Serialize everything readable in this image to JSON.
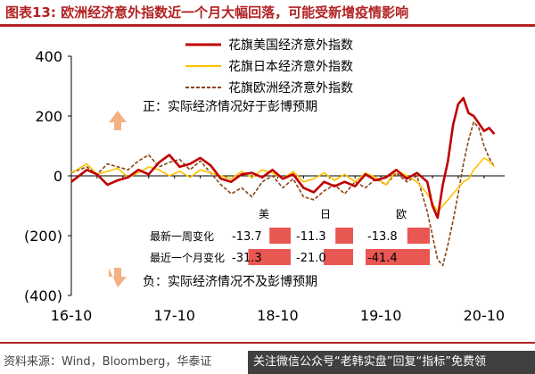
{
  "title": "图表13:  欧洲经济意外指数近一个月大幅回落，可能受新增疫情影响",
  "source": "资料来源：Wind，Bloomberg，华泰证",
  "watermark_text": "关注微信公众号“老韩实盘”回复“指标”免费领",
  "colors": {
    "us": "#c00000",
    "japan": "#ffc000",
    "euro": "#8b4513",
    "arrow": "#f4b183",
    "box": "#e53935"
  },
  "annotations": {
    "up": "正：实际经济情况好于彭博预期",
    "down": "负：实际经济情况不及彭博预期"
  },
  "change_table": {
    "columns": [
      "美",
      "日",
      "欧"
    ],
    "rows": [
      {
        "label": "最新一周变化",
        "values": [
          "-13.7",
          "-11.3",
          "-13.8"
        ],
        "levels": [
          0.35,
          0.3,
          0.35
        ]
      },
      {
        "label": "最近一个月变化",
        "values": [
          "-31.3",
          "-21.0",
          "-41.4"
        ],
        "levels": [
          0.7,
          0.5,
          1.0
        ]
      }
    ]
  },
  "chart_data": {
    "type": "line",
    "title": "",
    "xlabel": "",
    "ylabel": "",
    "ylim": [
      -400,
      400
    ],
    "y_ticks": [
      "400",
      "200",
      "0",
      "(200)",
      "(400)"
    ],
    "x_ticks": [
      "16-10",
      "17-10",
      "18-10",
      "19-10",
      "20-10"
    ],
    "legend": [
      "花旗美国经济意外指数",
      "花旗日本经济意外指数",
      "花旗欧洲经济意外指数"
    ],
    "legend_position": "top-right",
    "grid": false,
    "series": [
      {
        "name": "花旗美国经济意外指数",
        "key": "us",
        "style": "solid",
        "width": 2.6,
        "x": [
          2016.75,
          2016.9,
          2017.0,
          2017.1,
          2017.2,
          2017.3,
          2017.4,
          2017.5,
          2017.6,
          2017.7,
          2017.8,
          2017.9,
          2018.0,
          2018.1,
          2018.2,
          2018.3,
          2018.4,
          2018.5,
          2018.6,
          2018.7,
          2018.8,
          2018.9,
          2019.0,
          2019.1,
          2019.2,
          2019.3,
          2019.4,
          2019.5,
          2019.6,
          2019.7,
          2019.8,
          2019.9,
          2020.0,
          2020.1,
          2020.2,
          2020.25,
          2020.3,
          2020.35,
          2020.4,
          2020.45,
          2020.5,
          2020.55,
          2020.6,
          2020.65,
          2020.7,
          2020.75,
          2020.8,
          2020.85
        ],
        "y": [
          -20,
          20,
          5,
          -30,
          -15,
          -5,
          20,
          5,
          45,
          70,
          30,
          40,
          60,
          35,
          -10,
          -20,
          5,
          10,
          -5,
          20,
          -10,
          5,
          -40,
          -55,
          -20,
          -35,
          -20,
          -35,
          5,
          -15,
          -5,
          20,
          -10,
          10,
          -20,
          -100,
          -140,
          -30,
          50,
          170,
          240,
          260,
          210,
          200,
          175,
          150,
          160,
          140
        ]
      },
      {
        "name": "花旗日本经济意外指数",
        "key": "japan",
        "style": "solid",
        "width": 1.6,
        "x": [
          2016.75,
          2016.9,
          2017.0,
          2017.1,
          2017.2,
          2017.3,
          2017.4,
          2017.5,
          2017.6,
          2017.7,
          2017.8,
          2017.9,
          2018.0,
          2018.1,
          2018.2,
          2018.3,
          2018.4,
          2018.5,
          2018.6,
          2018.7,
          2018.8,
          2018.9,
          2019.0,
          2019.1,
          2019.2,
          2019.3,
          2019.4,
          2019.5,
          2019.6,
          2019.7,
          2019.8,
          2019.9,
          2020.0,
          2020.1,
          2020.2,
          2020.3,
          2020.4,
          2020.5,
          2020.55,
          2020.6,
          2020.65,
          2020.7,
          2020.75,
          2020.8,
          2020.85
        ],
        "y": [
          10,
          40,
          5,
          15,
          25,
          -5,
          10,
          30,
          20,
          0,
          15,
          -5,
          20,
          10,
          0,
          -10,
          15,
          -5,
          20,
          10,
          -10,
          15,
          -20,
          -10,
          10,
          -15,
          5,
          -20,
          10,
          -5,
          -30,
          20,
          0,
          -20,
          -60,
          -120,
          -80,
          -40,
          -20,
          -10,
          20,
          40,
          60,
          50,
          30
        ]
      },
      {
        "name": "花旗欧洲经济意外指数",
        "key": "euro",
        "style": "dashed",
        "width": 1.6,
        "x": [
          2016.75,
          2016.9,
          2017.0,
          2017.1,
          2017.2,
          2017.3,
          2017.4,
          2017.5,
          2017.6,
          2017.7,
          2017.8,
          2017.9,
          2018.0,
          2018.1,
          2018.2,
          2018.3,
          2018.4,
          2018.5,
          2018.6,
          2018.7,
          2018.8,
          2018.9,
          2019.0,
          2019.1,
          2019.2,
          2019.3,
          2019.4,
          2019.5,
          2019.6,
          2019.7,
          2019.8,
          2019.9,
          2020.0,
          2020.1,
          2020.2,
          2020.25,
          2020.3,
          2020.35,
          2020.4,
          2020.45,
          2020.5,
          2020.55,
          2020.6,
          2020.65,
          2020.7,
          2020.75,
          2020.8,
          2020.85
        ],
        "y": [
          10,
          30,
          5,
          40,
          30,
          20,
          50,
          70,
          30,
          45,
          55,
          20,
          50,
          10,
          -30,
          -60,
          -40,
          -70,
          -20,
          0,
          -40,
          -10,
          -70,
          -80,
          -50,
          -30,
          -60,
          -20,
          -40,
          -10,
          -30,
          10,
          -20,
          0,
          -120,
          -200,
          -280,
          -300,
          -230,
          -150,
          -60,
          40,
          120,
          180,
          160,
          100,
          60,
          30
        ]
      }
    ]
  }
}
